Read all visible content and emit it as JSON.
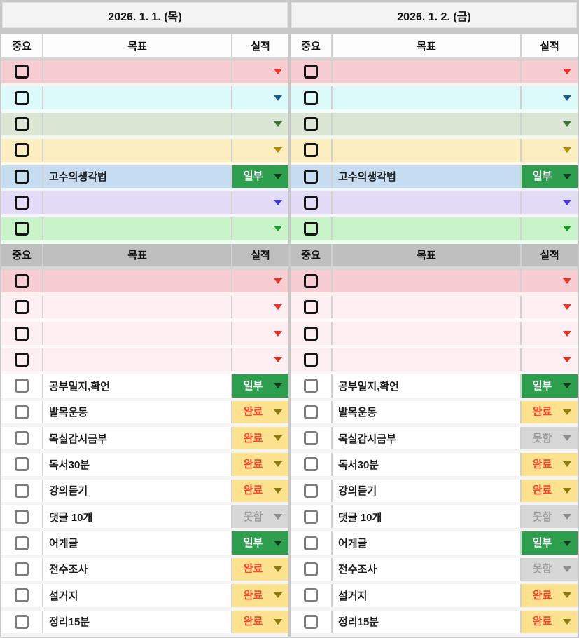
{
  "ui": {
    "days": [
      {
        "date": "2026. 1. 1. (목)"
      },
      {
        "date": "2026. 1. 2. (금)"
      }
    ],
    "column_headers": {
      "important": "중요",
      "goal": "목표",
      "result": "실적"
    },
    "status_styles": {
      "일부": {
        "bg": "#2d9e4e",
        "text": "#ffffff",
        "arrow": "#123c1d"
      },
      "완료": {
        "bg": "#fce28e",
        "text": "#fb4432",
        "arrow": "#8a7c10"
      },
      "못함": {
        "bg": "#d7d7d7",
        "text": "#9d9d9d",
        "arrow": "#8e8e8e"
      }
    },
    "blocks": [
      {
        "kind": "header",
        "style": "light"
      },
      {
        "kind": "row",
        "bg": "#f8cdd2",
        "spacer": "#fcf0f1",
        "arrow": "#ee3124",
        "checkbox": "dark",
        "goals": [
          "",
          ""
        ],
        "statuses": [
          null,
          null
        ]
      },
      {
        "kind": "row",
        "bg": "#dcfafa",
        "spacer": "#f0fcfc",
        "arrow": "#1d5e8f",
        "checkbox": "dark",
        "goals": [
          "",
          ""
        ],
        "statuses": [
          null,
          null
        ]
      },
      {
        "kind": "row",
        "bg": "#dbe7d4",
        "spacer": "#f1f6ee",
        "arrow": "#41763c",
        "checkbox": "dark",
        "goals": [
          "",
          ""
        ],
        "statuses": [
          null,
          null
        ]
      },
      {
        "kind": "row",
        "bg": "#fdeec2",
        "spacer": "#fdf8e8",
        "arrow": "#b08b00",
        "checkbox": "dark",
        "goals": [
          "",
          ""
        ],
        "statuses": [
          null,
          null
        ]
      },
      {
        "kind": "row",
        "bg": "#c6dcf0",
        "spacer": "#edf4fa",
        "arrow": "#1d5e8f",
        "checkbox": "dark",
        "goals": [
          "고수의생각법",
          "고수의생각법"
        ],
        "statuses": [
          "일부",
          "일부"
        ]
      },
      {
        "kind": "row",
        "bg": "#e2dcf7",
        "spacer": "#f5f3fc",
        "arrow": "#4b39f2",
        "checkbox": "dark",
        "goals": [
          "",
          ""
        ],
        "statuses": [
          null,
          null
        ]
      },
      {
        "kind": "row",
        "bg": "#c9f4ca",
        "spacer": "#eefbef",
        "arrow": "#1b9a2c",
        "checkbox": "dark",
        "goals": [
          "",
          ""
        ],
        "statuses": [
          null,
          null
        ]
      },
      {
        "kind": "header",
        "style": "gray"
      },
      {
        "kind": "row",
        "bg": "#f8cdd2",
        "spacer": "#fcf0f1",
        "arrow": "#ee3124",
        "checkbox": "dark",
        "goals": [
          "",
          ""
        ],
        "statuses": [
          null,
          null
        ]
      },
      {
        "kind": "row",
        "bg": "#fdeff1",
        "spacer": "#fef8f9",
        "arrow": "#ee3124",
        "checkbox": "dark",
        "goals": [
          "",
          ""
        ],
        "statuses": [
          null,
          null
        ]
      },
      {
        "kind": "row",
        "bg": "#fdeff1",
        "spacer": "#fef8f9",
        "arrow": "#ee3124",
        "checkbox": "dark",
        "goals": [
          "",
          ""
        ],
        "statuses": [
          null,
          null
        ]
      },
      {
        "kind": "row",
        "bg": "#fdeff1",
        "spacer": "#fef8f9",
        "arrow": "#ee3124",
        "checkbox": "dark",
        "goals": [
          "",
          ""
        ],
        "statuses": [
          null,
          null
        ]
      },
      {
        "kind": "row",
        "bg": "#ffffff",
        "spacer": "#f4f4f4",
        "arrow": "#555555",
        "checkbox": "gray",
        "goals": [
          "공부일지,확언",
          "공부일지,확언"
        ],
        "statuses": [
          "일부",
          "일부"
        ]
      },
      {
        "kind": "row",
        "bg": "#ffffff",
        "spacer": "#f4f4f4",
        "arrow": "#555555",
        "checkbox": "gray",
        "goals": [
          "발목운동",
          "발목운동"
        ],
        "statuses": [
          "완료",
          "완료"
        ]
      },
      {
        "kind": "row",
        "bg": "#ffffff",
        "spacer": "#f4f4f4",
        "arrow": "#555555",
        "checkbox": "gray",
        "goals": [
          "목실감시금부",
          "목실감시금부"
        ],
        "statuses": [
          "완료",
          "못함"
        ]
      },
      {
        "kind": "row",
        "bg": "#ffffff",
        "spacer": "#f4f4f4",
        "arrow": "#555555",
        "checkbox": "gray",
        "goals": [
          "독서30분",
          "독서30분"
        ],
        "statuses": [
          "완료",
          "완료"
        ]
      },
      {
        "kind": "row",
        "bg": "#ffffff",
        "spacer": "#f4f4f4",
        "arrow": "#555555",
        "checkbox": "gray",
        "goals": [
          "강의듣기",
          "강의듣기"
        ],
        "statuses": [
          "완료",
          "완료"
        ]
      },
      {
        "kind": "row",
        "bg": "#ffffff",
        "spacer": "#f4f4f4",
        "arrow": "#555555",
        "checkbox": "gray",
        "goals": [
          "댓글 10개",
          "댓글 10개"
        ],
        "statuses": [
          "못함",
          "못함"
        ]
      },
      {
        "kind": "row",
        "bg": "#ffffff",
        "spacer": "#f4f4f4",
        "arrow": "#555555",
        "checkbox": "gray",
        "goals": [
          "어게글",
          "어게글"
        ],
        "statuses": [
          "일부",
          "일부"
        ]
      },
      {
        "kind": "row",
        "bg": "#ffffff",
        "spacer": "#f4f4f4",
        "arrow": "#555555",
        "checkbox": "gray",
        "goals": [
          "전수조사",
          "전수조사"
        ],
        "statuses": [
          "완료",
          "못함"
        ]
      },
      {
        "kind": "row",
        "bg": "#ffffff",
        "spacer": "#f4f4f4",
        "arrow": "#555555",
        "checkbox": "gray",
        "goals": [
          "설거지",
          "설거지"
        ],
        "statuses": [
          "완료",
          "완료"
        ]
      },
      {
        "kind": "row",
        "bg": "#ffffff",
        "spacer": "#f4f4f4",
        "arrow": "#555555",
        "checkbox": "gray",
        "goals": [
          "정리15분",
          "정리15분"
        ],
        "statuses": [
          "완료",
          "완료"
        ]
      }
    ]
  }
}
